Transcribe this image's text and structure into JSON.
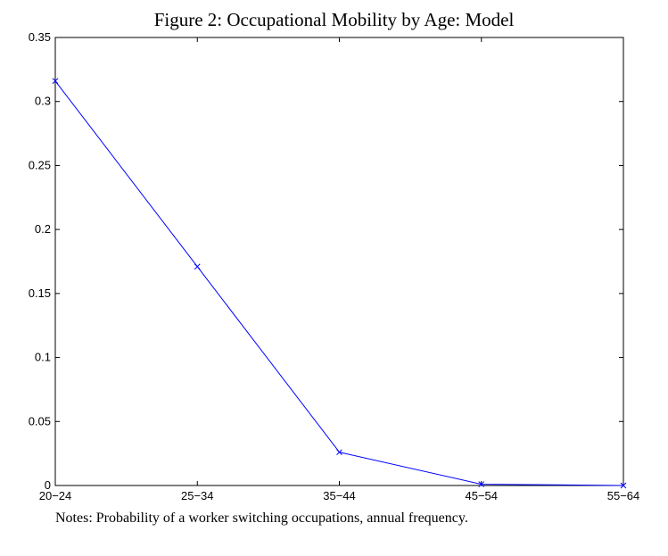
{
  "figure": {
    "title": "Figure 2: Occupational Mobility by Age: Model",
    "notes": "Notes: Probability of a worker switching occupations, annual frequency."
  },
  "chart_data": {
    "type": "line",
    "title": "Figure 2: Occupational Mobility by Age: Model",
    "xlabel": "",
    "ylabel": "",
    "categories": [
      "20−24",
      "25−34",
      "35−44",
      "45−54",
      "55−64"
    ],
    "series": [
      {
        "values": [
          0.316,
          0.171,
          0.026,
          0.001,
          0.0
        ],
        "color": "#0000ff",
        "marker": "x"
      }
    ],
    "ylim": [
      0,
      0.35
    ],
    "yticks": [
      0,
      0.05,
      0.1,
      0.15,
      0.2,
      0.25,
      0.3,
      0.35
    ],
    "ytick_labels": [
      "0",
      "0.05",
      "0.1",
      "0.15",
      "0.2",
      "0.25",
      "0.3",
      "0.35"
    ],
    "grid": false,
    "legend": "none"
  }
}
